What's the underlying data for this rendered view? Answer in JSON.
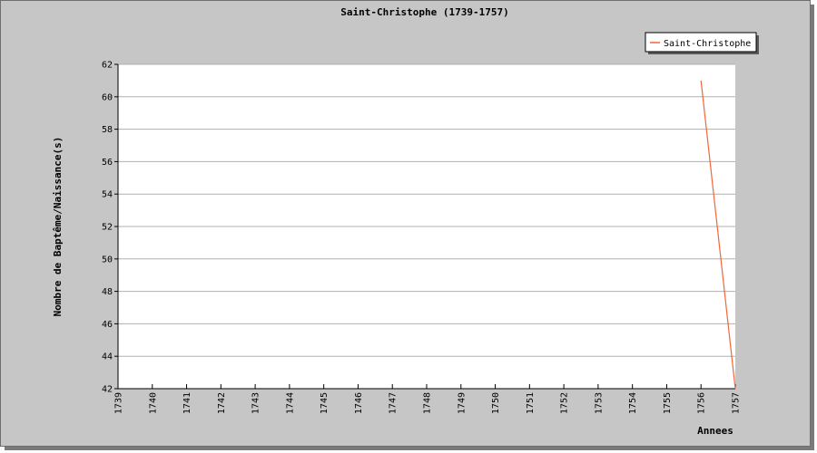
{
  "chart_data": {
    "type": "line",
    "title": "Saint-Christophe (1739-1757)",
    "xlabel": "Annees",
    "ylabel": "Nombre de Baptême/Naissance(s)",
    "categories": [
      "1739",
      "1740",
      "1741",
      "1742",
      "1743",
      "1744",
      "1745",
      "1746",
      "1747",
      "1748",
      "1749",
      "1750",
      "1751",
      "1752",
      "1753",
      "1754",
      "1755",
      "1756",
      "1757"
    ],
    "series": [
      {
        "name": "Saint-Christophe",
        "x": [
          "1756",
          "1757"
        ],
        "values": [
          61,
          42
        ],
        "color": "#f0663c"
      }
    ],
    "ylim": [
      42,
      62
    ],
    "yticks": [
      42,
      44,
      46,
      48,
      50,
      52,
      54,
      56,
      58,
      60,
      62
    ],
    "grid": true,
    "legend_position": "top-right"
  }
}
